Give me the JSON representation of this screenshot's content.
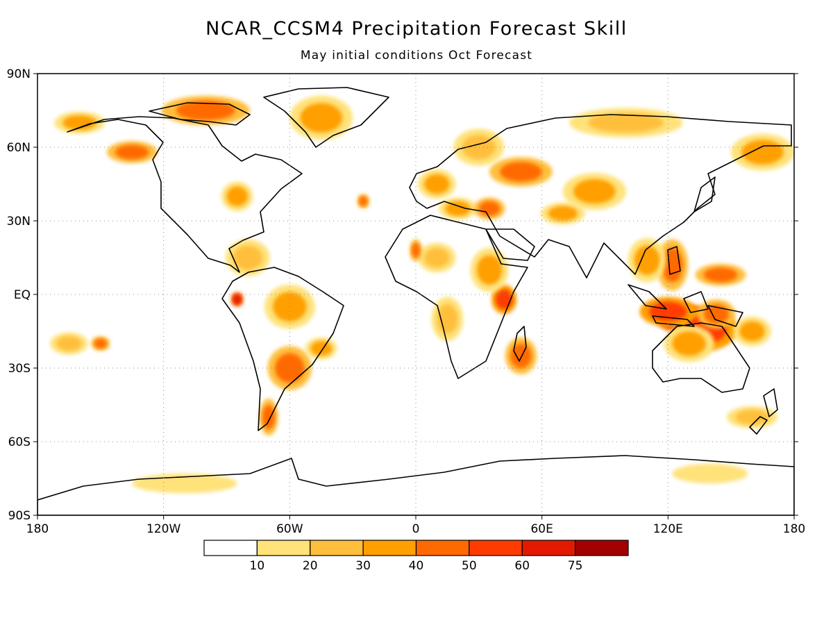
{
  "title": "NCAR_CCSM4 Precipitation Forecast Skill",
  "subtitle": "May initial conditions   Oct Forecast",
  "map": {
    "projection": "equirectangular",
    "lon_range": [
      -180,
      180
    ],
    "lat_range": [
      -90,
      90
    ],
    "grid": "dotted",
    "lat_ticks": [
      {
        "lat": 90,
        "label": "90N"
      },
      {
        "lat": 60,
        "label": "60N"
      },
      {
        "lat": 30,
        "label": "30N"
      },
      {
        "lat": 0,
        "label": "EQ"
      },
      {
        "lat": -30,
        "label": "30S"
      },
      {
        "lat": -60,
        "label": "60S"
      },
      {
        "lat": -90,
        "label": "90S"
      }
    ],
    "lon_ticks": [
      {
        "lon": -180,
        "label": "180"
      },
      {
        "lon": -120,
        "label": "120W"
      },
      {
        "lon": -60,
        "label": "60W"
      },
      {
        "lon": 0,
        "label": "0"
      },
      {
        "lon": 60,
        "label": "60E"
      },
      {
        "lon": 120,
        "label": "120E"
      },
      {
        "lon": 180,
        "label": "180"
      }
    ]
  },
  "colorbar": {
    "colors": [
      "#ffffff",
      "#ffe27a",
      "#ffbf3d",
      "#ff9f00",
      "#ff6a00",
      "#ff3c00",
      "#e31a00",
      "#a30000"
    ],
    "labels": [
      "10",
      "20",
      "30",
      "40",
      "50",
      "60",
      "75"
    ]
  },
  "skill_regions": [
    {
      "lon": 128,
      "lat": -10,
      "level": 6,
      "rx": 9,
      "ry": 4
    },
    {
      "lon": 138,
      "lat": -14,
      "level": 5,
      "rx": 10,
      "ry": 6
    },
    {
      "lon": 120,
      "lat": -7,
      "level": 5,
      "rx": 9,
      "ry": 4
    },
    {
      "lon": 143,
      "lat": -8,
      "level": 4,
      "rx": 6,
      "ry": 4
    },
    {
      "lon": 130,
      "lat": -20,
      "level": 3,
      "rx": 8,
      "ry": 5
    },
    {
      "lon": 122,
      "lat": 12,
      "level": 4,
      "rx": 5,
      "ry": 7
    },
    {
      "lon": 110,
      "lat": 14,
      "level": 3,
      "rx": 6,
      "ry": 6
    },
    {
      "lon": 145,
      "lat": 8,
      "level": 4,
      "rx": 8,
      "ry": 3
    },
    {
      "lon": 160,
      "lat": -15,
      "level": 3,
      "rx": 6,
      "ry": 4
    },
    {
      "lon": 42,
      "lat": -2,
      "level": 5,
      "rx": 4,
      "ry": 4
    },
    {
      "lon": 35,
      "lat": 10,
      "level": 3,
      "rx": 6,
      "ry": 6
    },
    {
      "lon": 50,
      "lat": -25,
      "level": 4,
      "rx": 5,
      "ry": 5
    },
    {
      "lon": 20,
      "lat": 35,
      "level": 3,
      "rx": 6,
      "ry": 3
    },
    {
      "lon": 35,
      "lat": 35,
      "level": 4,
      "rx": 5,
      "ry": 3
    },
    {
      "lon": 50,
      "lat": 50,
      "level": 4,
      "rx": 10,
      "ry": 4
    },
    {
      "lon": 85,
      "lat": 42,
      "level": 3,
      "rx": 10,
      "ry": 5
    },
    {
      "lon": 70,
      "lat": 33,
      "level": 3,
      "rx": 7,
      "ry": 3
    },
    {
      "lon": 100,
      "lat": 70,
      "level": 2,
      "rx": 18,
      "ry": 4
    },
    {
      "lon": 165,
      "lat": 58,
      "level": 3,
      "rx": 10,
      "ry": 5
    },
    {
      "lon": 30,
      "lat": 60,
      "level": 2,
      "rx": 8,
      "ry": 5
    },
    {
      "lon": 10,
      "lat": 45,
      "level": 3,
      "rx": 6,
      "ry": 4
    },
    {
      "lon": 10,
      "lat": 15,
      "level": 2,
      "rx": 6,
      "ry": 4
    },
    {
      "lon": 15,
      "lat": -10,
      "level": 2,
      "rx": 5,
      "ry": 6
    },
    {
      "lon": 0,
      "lat": 18,
      "level": 4,
      "rx": 2,
      "ry": 3
    },
    {
      "lon": -45,
      "lat": 72,
      "level": 3,
      "rx": 10,
      "ry": 6
    },
    {
      "lon": -100,
      "lat": 75,
      "level": 4,
      "rx": 14,
      "ry": 4
    },
    {
      "lon": -135,
      "lat": 58,
      "level": 4,
      "rx": 8,
      "ry": 3
    },
    {
      "lon": -160,
      "lat": 70,
      "level": 3,
      "rx": 8,
      "ry": 3
    },
    {
      "lon": -85,
      "lat": 40,
      "level": 3,
      "rx": 5,
      "ry": 4
    },
    {
      "lon": -80,
      "lat": 15,
      "level": 2,
      "rx": 7,
      "ry": 5
    },
    {
      "lon": -60,
      "lat": -5,
      "level": 3,
      "rx": 8,
      "ry": 6
    },
    {
      "lon": -60,
      "lat": -30,
      "level": 4,
      "rx": 7,
      "ry": 6
    },
    {
      "lon": -70,
      "lat": -50,
      "level": 4,
      "rx": 3,
      "ry": 5
    },
    {
      "lon": -85,
      "lat": -2,
      "level": 6,
      "rx": 2,
      "ry": 2
    },
    {
      "lon": -165,
      "lat": -20,
      "level": 2,
      "rx": 6,
      "ry": 3
    },
    {
      "lon": -150,
      "lat": -20,
      "level": 4,
      "rx": 3,
      "ry": 2
    },
    {
      "lon": -45,
      "lat": -22,
      "level": 3,
      "rx": 5,
      "ry": 3
    },
    {
      "lon": -25,
      "lat": 38,
      "level": 4,
      "rx": 2,
      "ry": 2
    },
    {
      "lon": -110,
      "lat": -77,
      "level": 1,
      "rx": 25,
      "ry": 4
    },
    {
      "lon": 140,
      "lat": -73,
      "level": 1,
      "rx": 18,
      "ry": 4
    },
    {
      "lon": 160,
      "lat": -50,
      "level": 2,
      "rx": 8,
      "ry": 3
    }
  ]
}
